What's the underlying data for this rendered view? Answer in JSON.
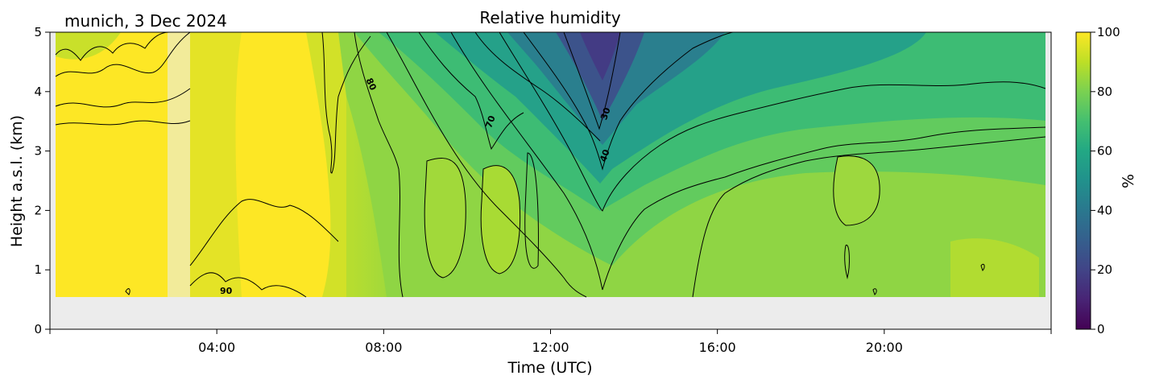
{
  "chart_data": {
    "type": "heatmap",
    "subtype": "filled-contour",
    "title": "Relative humidity",
    "subtitle": "munich, 3 Dec 2024",
    "xlabel": "Time (UTC)",
    "ylabel": "Height a.s.l. (km)",
    "xlim": [
      "00:00",
      "24:00"
    ],
    "ylim": [
      0,
      5
    ],
    "xticks": [
      "04:00",
      "08:00",
      "12:00",
      "16:00",
      "20:00"
    ],
    "yticks": [
      "0",
      "1",
      "2",
      "3",
      "4",
      "5"
    ],
    "colorbar": {
      "label": "%",
      "range": [
        0,
        100
      ],
      "ticks": [
        "0",
        "20",
        "40",
        "60",
        "80",
        "100"
      ],
      "colormap": "viridis"
    },
    "contour_levels": [
      30,
      40,
      50,
      60,
      70,
      80,
      90
    ],
    "contour_labels": [
      "90",
      "80",
      "70",
      "30",
      "40"
    ],
    "lowest_valid_height_km": 0.55,
    "missing_data_color": "#ececec",
    "colors": {
      "rh_100": "#fde725",
      "rh_90": "#b5de2b",
      "rh_80": "#6ece58",
      "rh_70": "#35b779",
      "rh_60": "#1f9e89",
      "rh_50": "#26828e",
      "rh_40": "#31688e",
      "rh_30": "#3e4989"
    }
  }
}
